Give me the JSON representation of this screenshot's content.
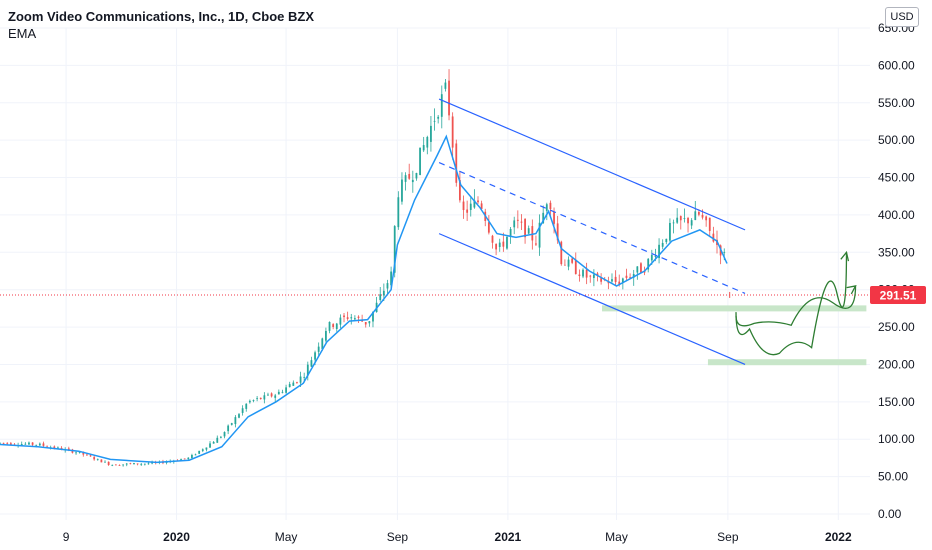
{
  "header": {
    "symbol_line": "Zoom Video Communications, Inc., 1D, Cboe BZX",
    "indicator": "EMA"
  },
  "currency_button": "USD",
  "price_label": "291.51",
  "colors": {
    "up": "#26a69a",
    "down": "#ef5350",
    "ema": "#2196f3",
    "channel": "#2962ff",
    "support_zone": "#c8e6c9",
    "projection": "#2e7d32",
    "price_tag_bg": "#f23645"
  },
  "chart_data": {
    "type": "candlestick",
    "title": "Zoom Video Communications, Inc., 1D, Cboe BZX",
    "ylim": [
      0,
      650
    ],
    "y_ticks": [
      "650.00",
      "600.00",
      "550.00",
      "500.00",
      "450.00",
      "400.00",
      "350.00",
      "300.00",
      "250.00",
      "200.00",
      "150.00",
      "100.00",
      "50.00",
      "0.00"
    ],
    "x_ticks": [
      {
        "label": "9",
        "bold": false
      },
      {
        "label": "2020",
        "bold": true
      },
      {
        "label": "May",
        "bold": false
      },
      {
        "label": "Sep",
        "bold": false
      },
      {
        "label": "2021",
        "bold": true
      },
      {
        "label": "May",
        "bold": false
      },
      {
        "label": "Sep",
        "bold": false
      },
      {
        "label": "2022",
        "bold": true
      }
    ],
    "x_tick_dates": [
      "2019-09-01",
      "2020-01-01",
      "2020-05-01",
      "2020-09-01",
      "2021-01-01",
      "2021-05-01",
      "2021-09-01",
      "2022-01-01"
    ],
    "x_range": [
      "2019-06-20",
      "2022-02-05"
    ],
    "last_price": 291.51,
    "price_path": [
      [
        "2019-06-20",
        95
      ],
      [
        "2019-08-01",
        93
      ],
      [
        "2019-09-15",
        82
      ],
      [
        "2019-10-20",
        66
      ],
      [
        "2019-12-10",
        68
      ],
      [
        "2020-01-15",
        75
      ],
      [
        "2020-02-20",
        105
      ],
      [
        "2020-03-20",
        150
      ],
      [
        "2020-04-20",
        160
      ],
      [
        "2020-05-20",
        185
      ],
      [
        "2020-06-15",
        250
      ],
      [
        "2020-07-10",
        265
      ],
      [
        "2020-07-30",
        255
      ],
      [
        "2020-08-25",
        320
      ],
      [
        "2020-09-01",
        430
      ],
      [
        "2020-09-20",
        460
      ],
      [
        "2020-10-15",
        540
      ],
      [
        "2020-10-25",
        570
      ],
      [
        "2020-11-10",
        400
      ],
      [
        "2020-12-01",
        420
      ],
      [
        "2020-12-20",
        350
      ],
      [
        "2021-01-10",
        390
      ],
      [
        "2021-02-01",
        365
      ],
      [
        "2021-02-15",
        430
      ],
      [
        "2021-03-01",
        340
      ],
      [
        "2021-04-01",
        315
      ],
      [
        "2021-05-01",
        310
      ],
      [
        "2021-06-01",
        330
      ],
      [
        "2021-07-01",
        385
      ],
      [
        "2021-08-01",
        400
      ],
      [
        "2021-08-20",
        360
      ],
      [
        "2021-08-31",
        340
      ]
    ],
    "ema_path": [
      [
        "2019-06-20",
        93
      ],
      [
        "2019-08-01",
        90
      ],
      [
        "2019-09-15",
        84
      ],
      [
        "2019-10-20",
        73
      ],
      [
        "2019-12-10",
        69
      ],
      [
        "2020-01-15",
        72
      ],
      [
        "2020-02-20",
        90
      ],
      [
        "2020-03-20",
        130
      ],
      [
        "2020-04-20",
        150
      ],
      [
        "2020-05-20",
        175
      ],
      [
        "2020-06-15",
        230
      ],
      [
        "2020-07-10",
        258
      ],
      [
        "2020-07-30",
        260
      ],
      [
        "2020-08-25",
        300
      ],
      [
        "2020-09-01",
        360
      ],
      [
        "2020-09-20",
        420
      ],
      [
        "2020-10-15",
        480
      ],
      [
        "2020-10-25",
        505
      ],
      [
        "2020-11-10",
        440
      ],
      [
        "2020-12-01",
        410
      ],
      [
        "2020-12-20",
        375
      ],
      [
        "2021-01-10",
        370
      ],
      [
        "2021-02-01",
        375
      ],
      [
        "2021-02-15",
        405
      ],
      [
        "2021-03-01",
        355
      ],
      [
        "2021-04-01",
        325
      ],
      [
        "2021-05-01",
        305
      ],
      [
        "2021-06-01",
        325
      ],
      [
        "2021-07-01",
        365
      ],
      [
        "2021-08-01",
        380
      ],
      [
        "2021-08-20",
        365
      ],
      [
        "2021-08-31",
        335
      ]
    ],
    "drawings": {
      "upper_channel": [
        [
          "2020-10-17",
          555
        ],
        [
          "2021-09-20",
          380
        ]
      ],
      "lower_channel": [
        [
          "2020-10-17",
          375
        ],
        [
          "2021-09-20",
          200
        ]
      ],
      "mid_channel": [
        [
          "2020-10-17",
          470
        ],
        [
          "2021-09-20",
          295
        ]
      ],
      "support_zone_1": {
        "from": "2021-04-15",
        "to": "2022-02-01",
        "value": 275
      },
      "support_zone_2": {
        "from": "2021-08-10",
        "to": "2022-02-01",
        "value": 203
      },
      "projection_1": [
        [
          "2021-09-10",
          270
        ],
        [
          "2021-10-10",
          225
        ],
        [
          "2021-11-15",
          205
        ],
        [
          "2021-12-20",
          240
        ],
        [
          "2022-01-10",
          350
        ]
      ],
      "projection_2": [
        [
          "2021-09-10",
          265
        ],
        [
          "2021-10-20",
          245
        ],
        [
          "2021-12-01",
          260
        ],
        [
          "2022-01-20",
          305
        ]
      ]
    }
  }
}
